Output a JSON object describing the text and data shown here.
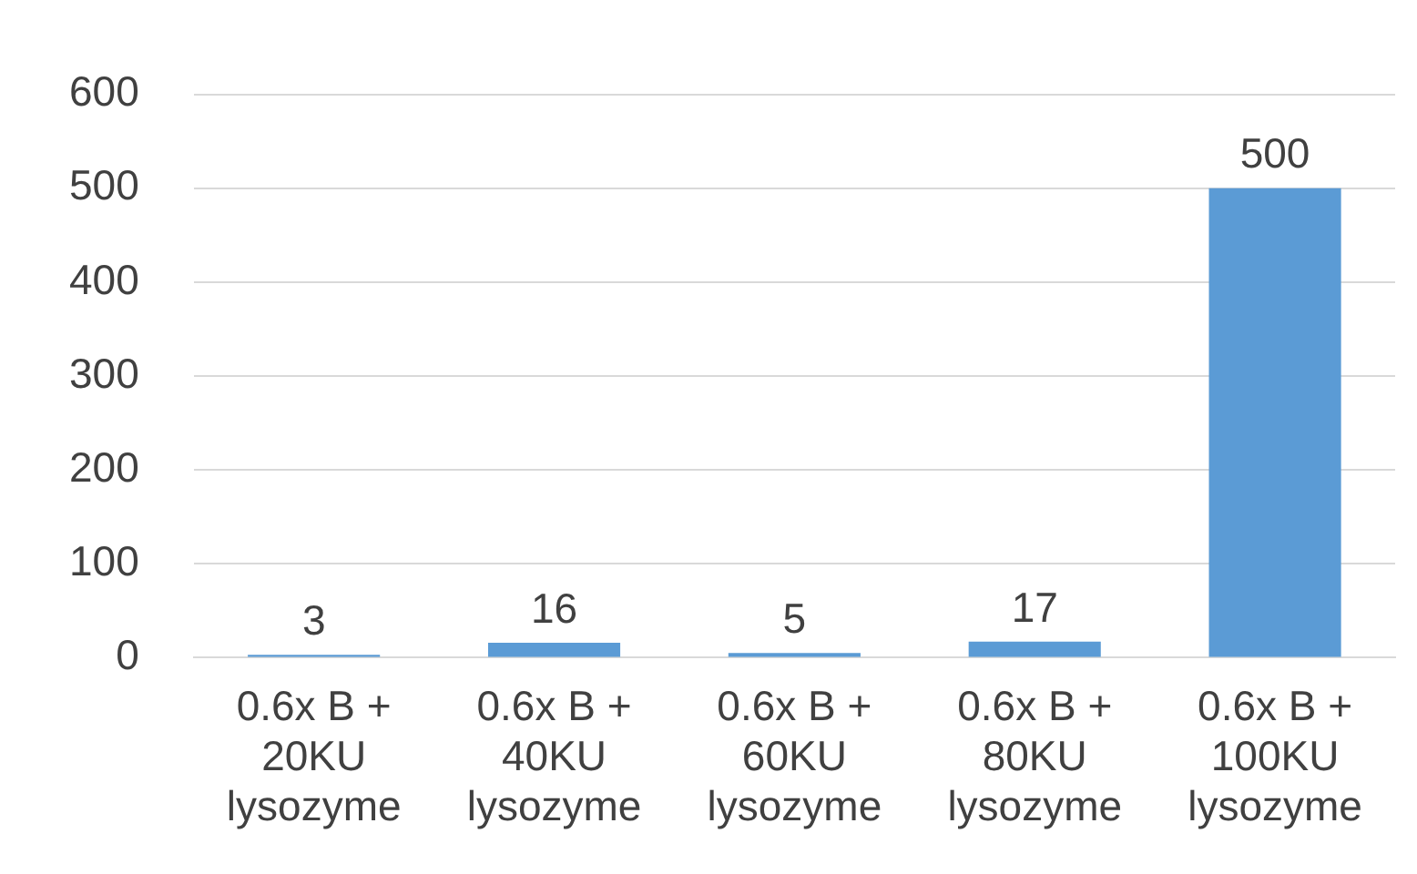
{
  "chart_data": {
    "type": "bar",
    "categories": [
      "0.6x B +\n20KU\nlysozyme",
      "0.6x B +\n40KU\nlysozyme",
      "0.6x B +\n60KU\nlysozyme",
      "0.6x B +\n80KU\nlysozyme",
      "0.6x B +\n100KU\nlysozyme"
    ],
    "values": [
      3,
      16,
      5,
      17,
      500
    ],
    "color": "#5b9bd5",
    "ylim": [
      0,
      600
    ],
    "yticks": [
      0,
      100,
      200,
      300,
      400,
      500,
      600
    ],
    "grid": "y",
    "data_labels": true,
    "legend": false
  }
}
